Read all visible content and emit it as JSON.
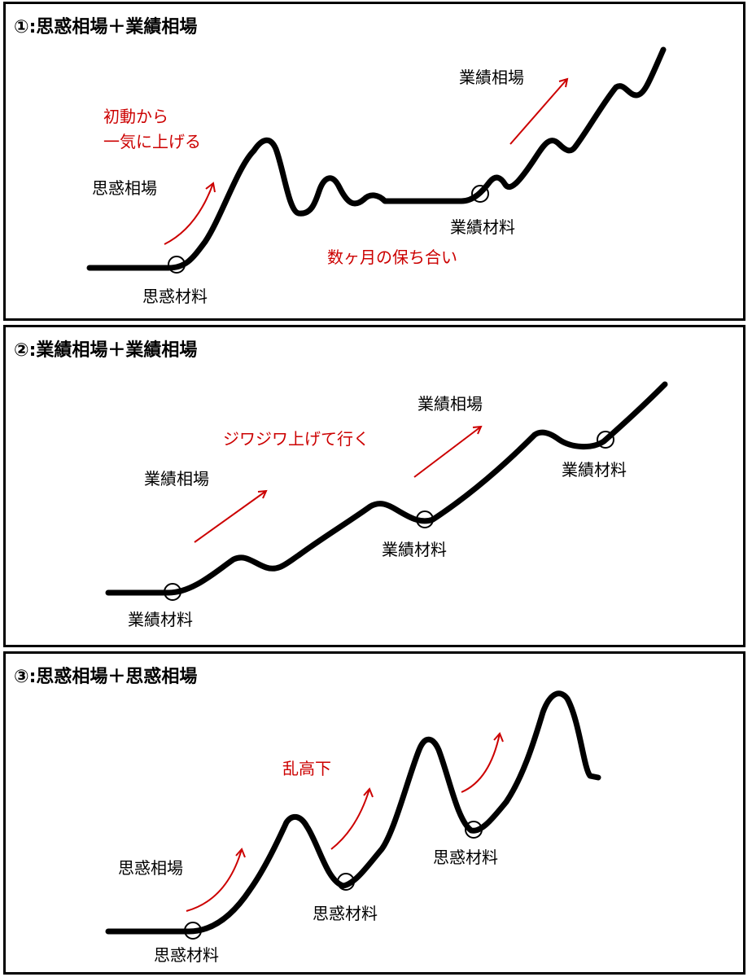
{
  "panels": [
    {
      "title": "①:思惑相場＋業績相場",
      "labels": {
        "initial_move_line1": "初動から",
        "initial_move_line2": "一気に上げる",
        "speculative_market": "思惑相場",
        "speculative_material": "思惑材料",
        "earnings_market": "業績相場",
        "earnings_material": "業績材料",
        "consolidation": "数ヶ月の保ち合い"
      }
    },
    {
      "title": "②:業績相場＋業績相場",
      "labels": {
        "earnings_market_1": "業績相場",
        "earnings_market_2": "業績相場",
        "gradual_rise": "ジワジワ上げて行く",
        "earnings_material_1": "業績材料",
        "earnings_material_2": "業績材料",
        "earnings_material_3": "業績材料"
      }
    },
    {
      "title": "③:思惑相場＋思惑相場",
      "labels": {
        "speculative_market": "思惑相場",
        "volatile": "乱高下",
        "speculative_material_1": "思惑材料",
        "speculative_material_2": "思惑材料",
        "speculative_material_3": "思惑材料"
      }
    }
  ],
  "colors": {
    "line": "#000000",
    "annotation": "#cc0000",
    "border": "#000000",
    "background": "#ffffff"
  }
}
